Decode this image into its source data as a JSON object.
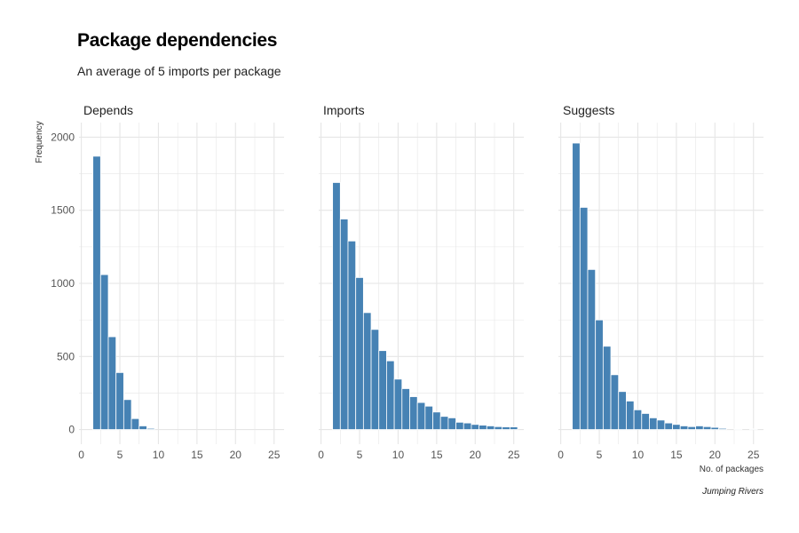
{
  "title": "Package dependencies",
  "subtitle": "An average of 5 imports per package",
  "caption": "Jumping Rivers",
  "colors": {
    "bar": "#4682b4",
    "grid": "#e6e6e6"
  },
  "chart_data": {
    "type": "bar",
    "title": "Package dependencies",
    "subtitle": "An average of 5 imports per package",
    "xlabel": "No. of packages",
    "ylabel": "Frequency",
    "xlim": [
      0,
      26
    ],
    "ylim": [
      0,
      2100
    ],
    "x_ticks": [
      "0",
      "5",
      "10",
      "15",
      "20",
      "25"
    ],
    "y_ticks": [
      "0",
      "500",
      "1000",
      "1500",
      "2000"
    ],
    "grid": true,
    "facets": [
      {
        "name": "Depends",
        "x": [
          2,
          3,
          4,
          5,
          6,
          7,
          8,
          9
        ],
        "values": [
          1870,
          1060,
          635,
          390,
          205,
          75,
          25,
          8
        ]
      },
      {
        "name": "Imports",
        "x": [
          2,
          3,
          4,
          5,
          6,
          7,
          8,
          9,
          10,
          11,
          12,
          13,
          14,
          15,
          16,
          17,
          18,
          19,
          20,
          21,
          22,
          23,
          24,
          25
        ],
        "values": [
          1690,
          1440,
          1290,
          1040,
          800,
          685,
          540,
          470,
          345,
          280,
          225,
          185,
          160,
          120,
          90,
          80,
          50,
          45,
          35,
          30,
          25,
          20,
          18,
          18
        ]
      },
      {
        "name": "Suggests",
        "x": [
          2,
          3,
          4,
          5,
          6,
          7,
          8,
          9,
          10,
          11,
          12,
          13,
          14,
          15,
          16,
          17,
          18,
          19,
          20,
          21,
          22,
          23,
          24,
          25
        ],
        "values": [
          1960,
          1520,
          1095,
          750,
          570,
          375,
          260,
          195,
          135,
          110,
          80,
          65,
          45,
          35,
          25,
          20,
          25,
          20,
          15,
          8,
          0,
          5,
          0,
          5
        ]
      }
    ]
  }
}
